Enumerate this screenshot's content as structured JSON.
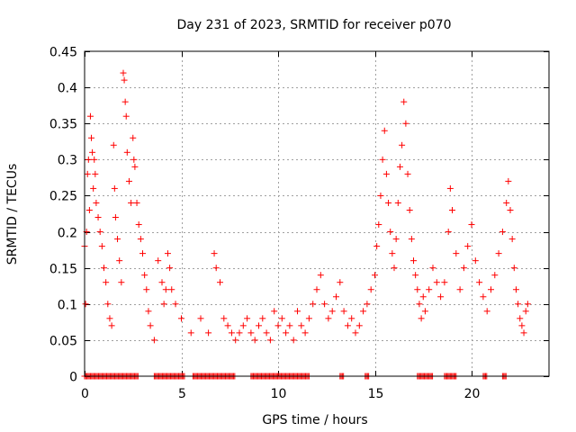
{
  "chart_data": {
    "type": "scatter",
    "title": "Day 231 of 2023, SRMTID for receiver p070",
    "xlabel": "GPS time / hours",
    "ylabel": "SRMTID / TECUs",
    "xlim": [
      0,
      24
    ],
    "ylim": [
      0,
      0.45
    ],
    "xticks": [
      0,
      5,
      10,
      15,
      20
    ],
    "xtick_labels": [
      "0",
      "5",
      "10",
      "15",
      "20"
    ],
    "yticks": [
      0,
      0.05,
      0.1,
      0.15,
      0.2,
      0.25,
      0.3,
      0.35,
      0.4,
      0.45
    ],
    "ytick_labels": [
      "0",
      "0.05",
      "0.1",
      "0.15",
      "0.2",
      "0.25",
      "0.3",
      "0.35",
      "0.4",
      "0.45"
    ],
    "grid": true,
    "marker": "+",
    "marker_color": "#ff0000",
    "series": [
      {
        "name": "SRMTID",
        "points": [
          [
            0.0,
            0.18
          ],
          [
            0.05,
            0.1
          ],
          [
            0.1,
            0.2
          ],
          [
            0.15,
            0.28
          ],
          [
            0.2,
            0.3
          ],
          [
            0.25,
            0.23
          ],
          [
            0.3,
            0.36
          ],
          [
            0.35,
            0.33
          ],
          [
            0.4,
            0.31
          ],
          [
            0.45,
            0.26
          ],
          [
            0.5,
            0.3
          ],
          [
            0.55,
            0.28
          ],
          [
            0.6,
            0.24
          ],
          [
            0.7,
            0.22
          ],
          [
            0.8,
            0.2
          ],
          [
            0.9,
            0.18
          ],
          [
            1.0,
            0.15
          ],
          [
            1.1,
            0.13
          ],
          [
            1.2,
            0.1
          ],
          [
            1.3,
            0.08
          ],
          [
            1.4,
            0.07
          ],
          [
            1.5,
            0.32
          ],
          [
            1.55,
            0.26
          ],
          [
            1.6,
            0.22
          ],
          [
            1.7,
            0.19
          ],
          [
            1.8,
            0.16
          ],
          [
            1.9,
            0.13
          ],
          [
            2.0,
            0.42
          ],
          [
            2.05,
            0.41
          ],
          [
            2.1,
            0.38
          ],
          [
            2.15,
            0.36
          ],
          [
            2.2,
            0.31
          ],
          [
            2.3,
            0.27
          ],
          [
            2.4,
            0.24
          ],
          [
            2.5,
            0.33
          ],
          [
            2.55,
            0.3
          ],
          [
            2.6,
            0.29
          ],
          [
            2.7,
            0.24
          ],
          [
            2.8,
            0.21
          ],
          [
            2.9,
            0.19
          ],
          [
            3.0,
            0.17
          ],
          [
            3.1,
            0.14
          ],
          [
            3.2,
            0.12
          ],
          [
            3.3,
            0.09
          ],
          [
            3.4,
            0.07
          ],
          [
            3.6,
            0.05
          ],
          [
            3.8,
            0.16
          ],
          [
            4.0,
            0.13
          ],
          [
            4.1,
            0.1
          ],
          [
            4.2,
            0.12
          ],
          [
            4.3,
            0.17
          ],
          [
            4.4,
            0.15
          ],
          [
            4.5,
            0.12
          ],
          [
            4.7,
            0.1
          ],
          [
            5.0,
            0.08
          ],
          [
            5.5,
            0.06
          ],
          [
            6.0,
            0.08
          ],
          [
            6.4,
            0.06
          ],
          [
            6.7,
            0.17
          ],
          [
            6.8,
            0.15
          ],
          [
            7.0,
            0.13
          ],
          [
            7.2,
            0.08
          ],
          [
            7.4,
            0.07
          ],
          [
            7.6,
            0.06
          ],
          [
            7.8,
            0.05
          ],
          [
            8.0,
            0.06
          ],
          [
            8.2,
            0.07
          ],
          [
            8.4,
            0.08
          ],
          [
            8.6,
            0.06
          ],
          [
            8.8,
            0.05
          ],
          [
            9.0,
            0.07
          ],
          [
            9.2,
            0.08
          ],
          [
            9.4,
            0.06
          ],
          [
            9.6,
            0.05
          ],
          [
            9.8,
            0.09
          ],
          [
            10.0,
            0.07
          ],
          [
            10.2,
            0.08
          ],
          [
            10.4,
            0.06
          ],
          [
            10.6,
            0.07
          ],
          [
            10.8,
            0.05
          ],
          [
            11.0,
            0.09
          ],
          [
            11.2,
            0.07
          ],
          [
            11.4,
            0.06
          ],
          [
            11.6,
            0.08
          ],
          [
            11.8,
            0.1
          ],
          [
            12.0,
            0.12
          ],
          [
            12.2,
            0.14
          ],
          [
            12.4,
            0.1
          ],
          [
            12.6,
            0.08
          ],
          [
            12.8,
            0.09
          ],
          [
            13.0,
            0.11
          ],
          [
            13.2,
            0.13
          ],
          [
            13.4,
            0.09
          ],
          [
            13.6,
            0.07
          ],
          [
            13.8,
            0.08
          ],
          [
            14.0,
            0.06
          ],
          [
            14.2,
            0.07
          ],
          [
            14.4,
            0.09
          ],
          [
            14.6,
            0.1
          ],
          [
            14.8,
            0.12
          ],
          [
            15.0,
            0.14
          ],
          [
            15.1,
            0.18
          ],
          [
            15.2,
            0.21
          ],
          [
            15.3,
            0.25
          ],
          [
            15.4,
            0.3
          ],
          [
            15.5,
            0.34
          ],
          [
            15.6,
            0.28
          ],
          [
            15.7,
            0.24
          ],
          [
            15.8,
            0.2
          ],
          [
            15.9,
            0.17
          ],
          [
            16.0,
            0.15
          ],
          [
            16.1,
            0.19
          ],
          [
            16.2,
            0.24
          ],
          [
            16.3,
            0.29
          ],
          [
            16.4,
            0.32
          ],
          [
            16.5,
            0.38
          ],
          [
            16.6,
            0.35
          ],
          [
            16.7,
            0.28
          ],
          [
            16.8,
            0.23
          ],
          [
            16.9,
            0.19
          ],
          [
            17.0,
            0.16
          ],
          [
            17.1,
            0.14
          ],
          [
            17.2,
            0.12
          ],
          [
            17.3,
            0.1
          ],
          [
            17.4,
            0.08
          ],
          [
            17.5,
            0.11
          ],
          [
            17.6,
            0.09
          ],
          [
            17.8,
            0.12
          ],
          [
            18.0,
            0.15
          ],
          [
            18.2,
            0.13
          ],
          [
            18.4,
            0.11
          ],
          [
            18.6,
            0.13
          ],
          [
            18.8,
            0.2
          ],
          [
            18.9,
            0.26
          ],
          [
            19.0,
            0.23
          ],
          [
            19.2,
            0.17
          ],
          [
            19.4,
            0.12
          ],
          [
            19.6,
            0.15
          ],
          [
            19.8,
            0.18
          ],
          [
            20.0,
            0.21
          ],
          [
            20.2,
            0.16
          ],
          [
            20.4,
            0.13
          ],
          [
            20.6,
            0.11
          ],
          [
            20.8,
            0.09
          ],
          [
            21.0,
            0.12
          ],
          [
            21.2,
            0.14
          ],
          [
            21.4,
            0.17
          ],
          [
            21.6,
            0.2
          ],
          [
            21.8,
            0.24
          ],
          [
            21.9,
            0.27
          ],
          [
            22.0,
            0.23
          ],
          [
            22.1,
            0.19
          ],
          [
            22.2,
            0.15
          ],
          [
            22.3,
            0.12
          ],
          [
            22.4,
            0.1
          ],
          [
            22.5,
            0.08
          ],
          [
            22.6,
            0.07
          ],
          [
            22.7,
            0.06
          ],
          [
            22.8,
            0.09
          ],
          [
            22.9,
            0.1
          ]
        ]
      }
    ],
    "zero_band_intervals": [
      [
        0.0,
        2.8
      ],
      [
        3.6,
        5.2
      ],
      [
        5.6,
        7.8
      ],
      [
        8.6,
        11.6
      ],
      [
        13.2,
        13.4
      ],
      [
        14.5,
        14.7
      ],
      [
        17.2,
        18.0
      ],
      [
        18.6,
        19.2
      ],
      [
        20.6,
        20.8
      ],
      [
        21.6,
        21.8
      ]
    ]
  }
}
